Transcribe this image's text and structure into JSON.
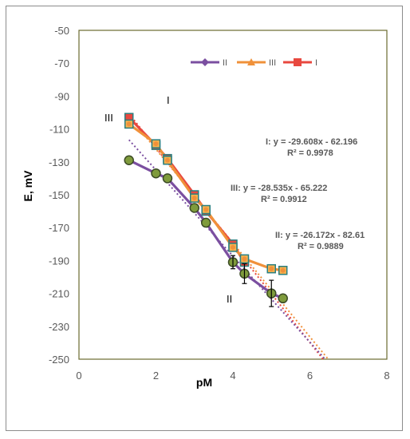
{
  "chart_data": {
    "type": "line",
    "xlabel": "pM",
    "ylabel": "E, mV",
    "xlim": [
      0,
      8
    ],
    "ylim": [
      -250,
      -50
    ],
    "x_ticks": [
      "0",
      "2",
      "4",
      "6",
      "8"
    ],
    "y_ticks": [
      "-50",
      "-70",
      "-90",
      "-110",
      "-130",
      "-150",
      "-170",
      "-190",
      "-210",
      "-230",
      "-250"
    ],
    "legend_position": "top-right",
    "grid": false,
    "series": [
      {
        "name": "I",
        "color": "#e8483f",
        "marker": "square",
        "x": [
          1.3,
          2.0,
          2.3,
          3.0,
          3.3,
          4.0,
          4.3
        ],
        "y": [
          -103,
          -120,
          -128,
          -150,
          -160,
          -180,
          -191
        ]
      },
      {
        "name": "II",
        "color": "#7b4fa0",
        "marker": "diamond",
        "x": [
          1.3,
          2.0,
          2.3,
          3.0,
          3.3,
          4.0,
          4.3,
          5.0,
          5.3
        ],
        "y": [
          -129,
          -137,
          -140,
          -158,
          -167,
          -191,
          -198,
          -210,
          -213
        ],
        "error": [
          0,
          0,
          0,
          0,
          0,
          4,
          6,
          8,
          0
        ]
      },
      {
        "name": "III",
        "color": "#f0913a",
        "marker": "triangle",
        "x": [
          1.3,
          2.0,
          2.3,
          3.0,
          3.3,
          4.0,
          4.3,
          5.0,
          5.3
        ],
        "y": [
          -107,
          -119,
          -129,
          -152,
          -159,
          -182,
          -189,
          -195,
          -196
        ]
      }
    ],
    "trendlines": [
      {
        "series": "I",
        "slope": -29.608,
        "intercept": -62.196,
        "x_range": [
          1.3,
          6.5
        ]
      },
      {
        "series": "III",
        "slope": -28.535,
        "intercept": -65.222,
        "x_range": [
          1.3,
          6.5
        ]
      },
      {
        "series": "II",
        "slope": -26.172,
        "intercept": -82.61,
        "x_range": [
          1.3,
          6.5
        ]
      }
    ],
    "annotations": {
      "eq_I": "I: y = -29.608x - 62.196",
      "r2_I": "R² = 0.9978",
      "eq_III": "III: y = -28.535x - 65.222",
      "r2_III": "R² = 0.9912",
      "eq_II": "II: y = -26.172x - 82.61",
      "r2_II": "R² = 0.9889",
      "label_I": "I",
      "label_II": "II",
      "label_III": "III"
    }
  }
}
